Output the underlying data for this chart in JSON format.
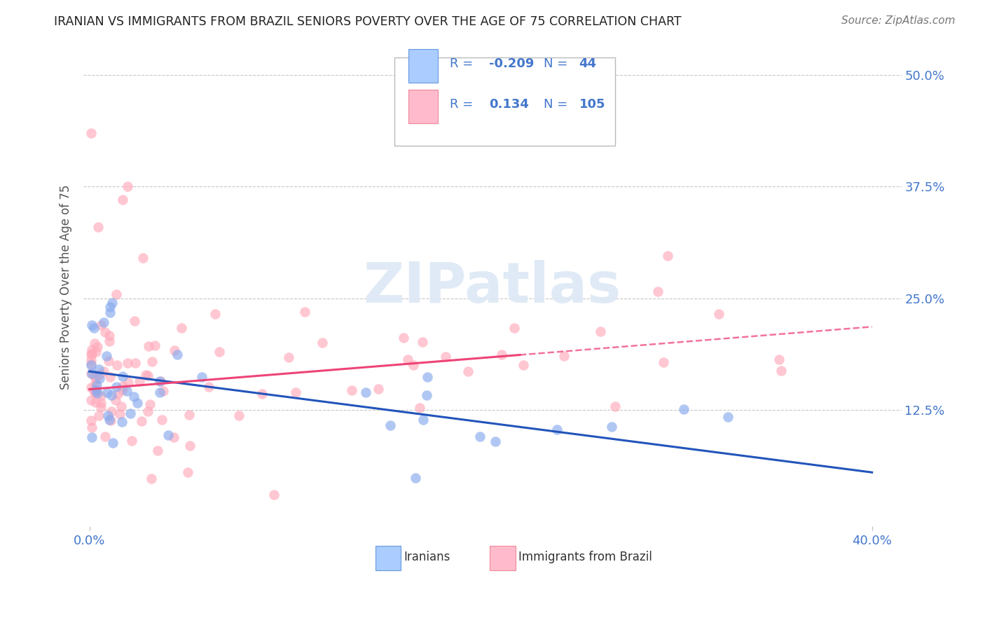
{
  "title": "IRANIAN VS IMMIGRANTS FROM BRAZIL SENIORS POVERTY OVER THE AGE OF 75 CORRELATION CHART",
  "source": "Source: ZipAtlas.com",
  "ylabel": "Seniors Poverty Over the Age of 75",
  "xlim": [
    -0.003,
    0.415
  ],
  "ylim": [
    -0.005,
    0.53
  ],
  "xtick_positions": [
    0.0,
    0.4
  ],
  "xticklabels": [
    "0.0%",
    "40.0%"
  ],
  "ytick_positions": [
    0.125,
    0.25,
    0.375,
    0.5
  ],
  "ytick_labels": [
    "12.5%",
    "25.0%",
    "37.5%",
    "50.0%"
  ],
  "grid_color": "#c8c8c8",
  "background_color": "#ffffff",
  "legend_text_color": "#4477cc",
  "legend_dark_color": "#333333",
  "color_iranian": "#88aaee",
  "color_brazil": "#ffaabb",
  "line_color_iranian": "#2255bb",
  "line_color_brazil": "#ee4477",
  "iran_line_x0": 0.0,
  "iran_line_y0": 0.168,
  "iran_line_x1": 0.4,
  "iran_line_y1": 0.055,
  "braz_line_x0": 0.0,
  "braz_line_y0": 0.148,
  "braz_line_solid_x1": 0.22,
  "braz_line_x1": 0.4,
  "braz_line_y1": 0.218
}
